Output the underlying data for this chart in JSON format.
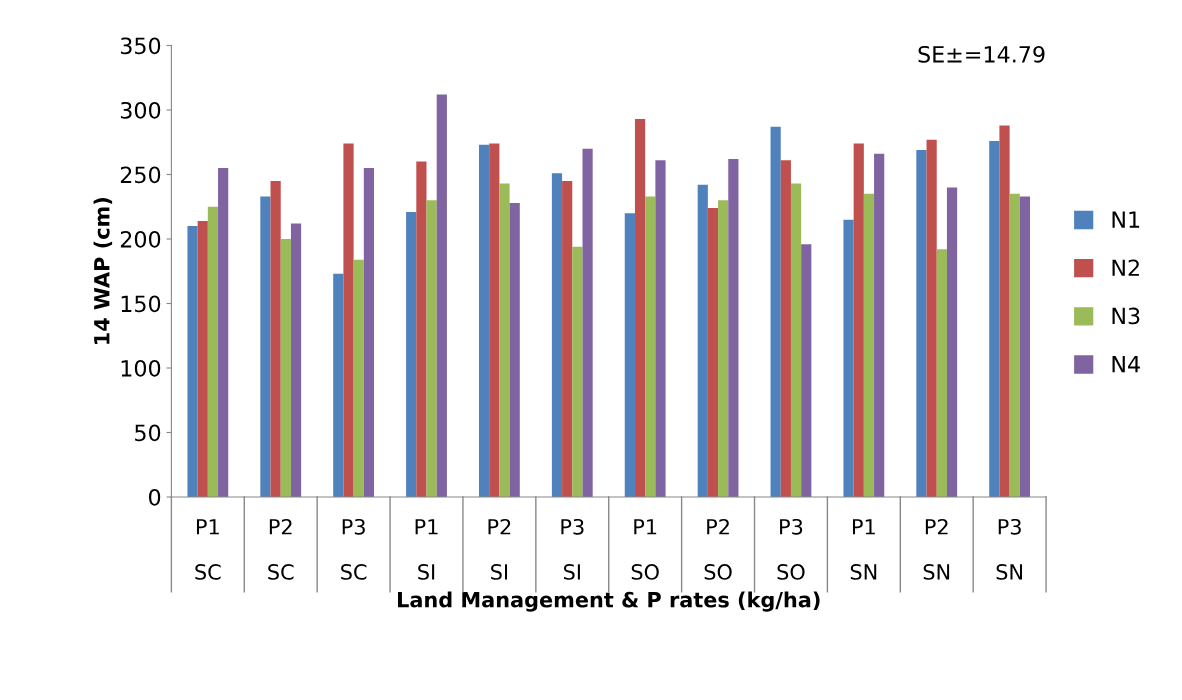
{
  "chart_data": {
    "type": "bar",
    "categories": [
      "P1\nSC",
      "P2\nSC",
      "P3\nSC",
      "P1\nSI",
      "P2\nSI",
      "P3\nSI",
      "P1\nSO",
      "P2\nSO",
      "P3\nSO",
      "P1\nSN",
      "P2\nSN",
      "P3\nSN"
    ],
    "series": [
      {
        "name": "N1",
        "color": "#4f81bd",
        "values": [
          210,
          233,
          173,
          221,
          273,
          251,
          220,
          242,
          287,
          215,
          269,
          276
        ]
      },
      {
        "name": "N2",
        "color": "#c0504d",
        "values": [
          214,
          245,
          274,
          260,
          274,
          245,
          293,
          224,
          261,
          274,
          277,
          288
        ]
      },
      {
        "name": "N3",
        "color": "#9bbb59",
        "values": [
          225,
          200,
          184,
          230,
          243,
          194,
          233,
          230,
          243,
          235,
          192,
          235
        ]
      },
      {
        "name": "N4",
        "color": "#8064a2",
        "values": [
          255,
          212,
          255,
          312,
          228,
          270,
          261,
          262,
          196,
          266,
          240,
          233
        ]
      }
    ],
    "ylim": [
      0,
      350
    ],
    "yticks": [
      0,
      50,
      100,
      150,
      200,
      250,
      300,
      350
    ],
    "xlabel": "Land Management & P rates (kg/ha)",
    "ylabel": "14 WAP (cm)",
    "annotations": [
      "SE±=14.79"
    ],
    "legend": "right",
    "grid": false
  }
}
